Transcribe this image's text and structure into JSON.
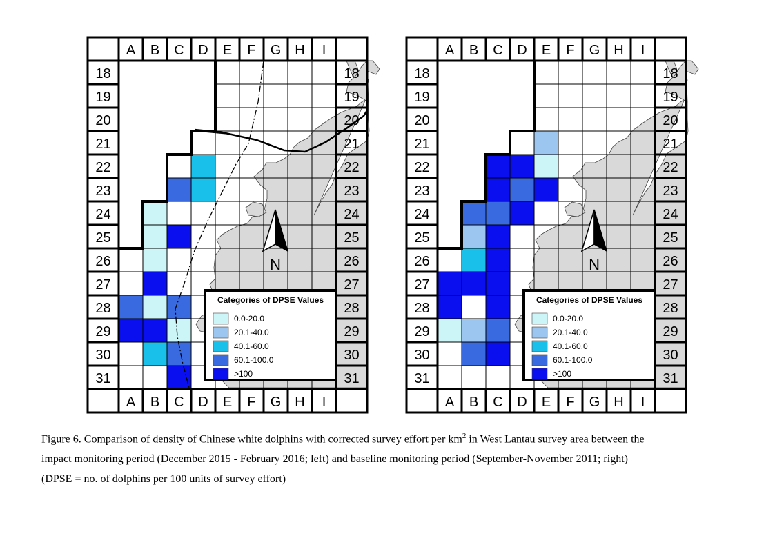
{
  "grid": {
    "columns": [
      "A",
      "B",
      "C",
      "D",
      "E",
      "F",
      "G",
      "H",
      "I"
    ],
    "rows": [
      "18",
      "19",
      "20",
      "21",
      "22",
      "23",
      "24",
      "25",
      "26",
      "27",
      "28",
      "29",
      "30",
      "31"
    ]
  },
  "legend": {
    "title": "Categories of DPSE Values",
    "categories": [
      {
        "key": "c1",
        "label": "0.0-20.0",
        "color": "#ccf5f8"
      },
      {
        "key": "c2",
        "label": "20.1-40.0",
        "color": "#9cc6ef"
      },
      {
        "key": "c3",
        "label": "40.1-60.0",
        "color": "#18c0ea"
      },
      {
        "key": "c4",
        "label": "60.1-100.0",
        "color": "#3a6ae0"
      },
      {
        "key": "c5",
        "label": ">100",
        "color": "#0a0ff0"
      }
    ]
  },
  "north_label": "N",
  "colors": {
    "land": "#d9d9d9",
    "empty_cell": "#ffffff",
    "outline": "#000000"
  },
  "maps": [
    {
      "id": "left",
      "period": "impact monitoring period (December 2015 - February 2016)",
      "cells": [
        {
          "cell": "D22",
          "category": "c3"
        },
        {
          "cell": "C23",
          "category": "c4"
        },
        {
          "cell": "D23",
          "category": "c3"
        },
        {
          "cell": "B24",
          "category": "c1"
        },
        {
          "cell": "B25",
          "category": "c1"
        },
        {
          "cell": "C25",
          "category": "c5"
        },
        {
          "cell": "B26",
          "category": "c1"
        },
        {
          "cell": "B27",
          "category": "c5"
        },
        {
          "cell": "A28",
          "category": "c4"
        },
        {
          "cell": "B28",
          "category": "c1"
        },
        {
          "cell": "C28",
          "category": "c4"
        },
        {
          "cell": "A29",
          "category": "c5"
        },
        {
          "cell": "B29",
          "category": "c5"
        },
        {
          "cell": "C29",
          "category": "c1"
        },
        {
          "cell": "B30",
          "category": "c3"
        },
        {
          "cell": "C30",
          "category": "c4"
        },
        {
          "cell": "C31",
          "category": "c5"
        }
      ]
    },
    {
      "id": "right",
      "period": "baseline monitoring period (September-November 2011)",
      "cells": [
        {
          "cell": "E21",
          "category": "c2"
        },
        {
          "cell": "C22",
          "category": "c5"
        },
        {
          "cell": "D22",
          "category": "c5"
        },
        {
          "cell": "E22",
          "category": "c1"
        },
        {
          "cell": "C23",
          "category": "c5"
        },
        {
          "cell": "D23",
          "category": "c4"
        },
        {
          "cell": "E23",
          "category": "c5"
        },
        {
          "cell": "B24",
          "category": "c4"
        },
        {
          "cell": "C24",
          "category": "c4"
        },
        {
          "cell": "D24",
          "category": "c5"
        },
        {
          "cell": "B25",
          "category": "c2"
        },
        {
          "cell": "C25",
          "category": "c5"
        },
        {
          "cell": "B26",
          "category": "c3"
        },
        {
          "cell": "C26",
          "category": "c5"
        },
        {
          "cell": "A27",
          "category": "c5"
        },
        {
          "cell": "B27",
          "category": "c5"
        },
        {
          "cell": "C27",
          "category": "c5"
        },
        {
          "cell": "A28",
          "category": "c5"
        },
        {
          "cell": "C28",
          "category": "c5"
        },
        {
          "cell": "A29",
          "category": "c1"
        },
        {
          "cell": "B29",
          "category": "c2"
        },
        {
          "cell": "C29",
          "category": "c4"
        },
        {
          "cell": "B30",
          "category": "c4"
        },
        {
          "cell": "C30",
          "category": "c5"
        }
      ]
    }
  ],
  "caption": {
    "line1_before_sup": "Figure 6.  Comparison of density of Chinese white dolphins with corrected survey effort per km",
    "sup": "2",
    "line1_after_sup": " in West Lantau survey area between the",
    "line2": "impact monitoring period (December 2015 - February 2016; left) and baseline monitoring period (September-November 2011; right)",
    "line3": "(DPSE = no. of dolphins per 100 units of survey effort)"
  }
}
